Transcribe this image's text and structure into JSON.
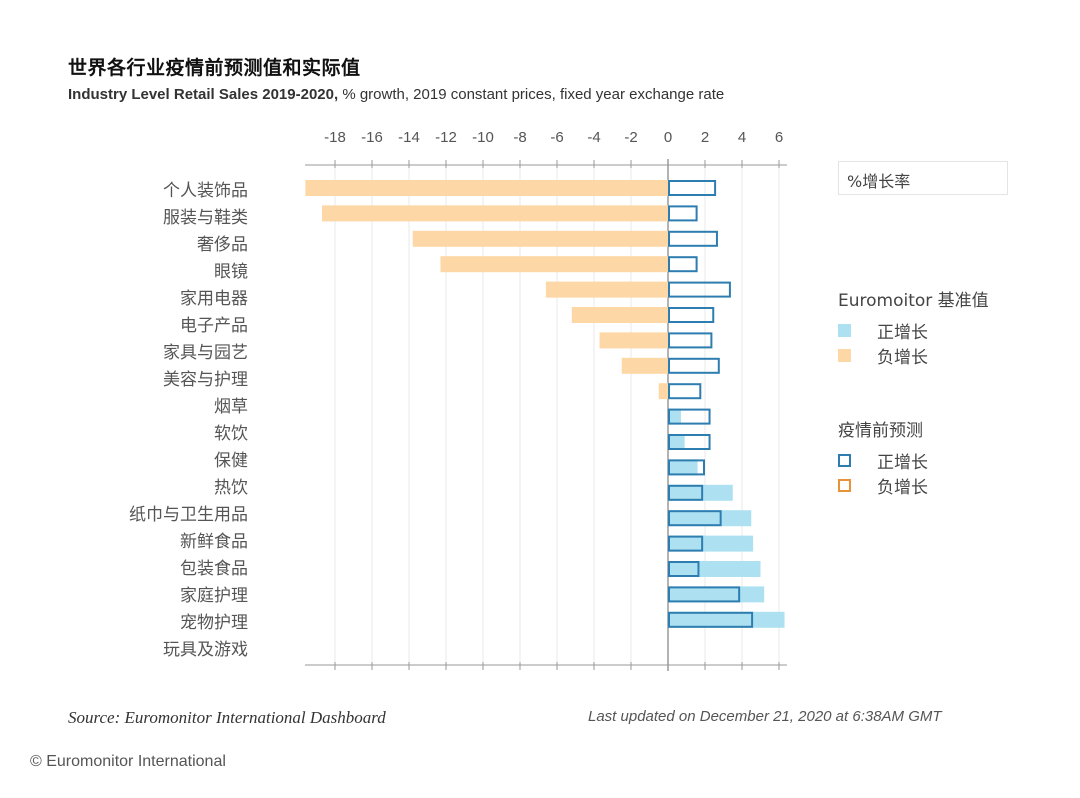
{
  "header": {
    "title": "世界各行业疫情前预测值和实际值",
    "subtitle_bold": "Industry Level Retail Sales 2019-2020,",
    "subtitle_rest": " % growth, 2019 constant prices, fixed year exchange rate"
  },
  "legend": {
    "box_label": "%增长率",
    "group1_title": "Euromoitor 基准值",
    "group1_items": [
      {
        "label": "正增长",
        "color": "#ADE1F2",
        "style": "fill"
      },
      {
        "label": "负增长",
        "color": "#FDD7A5",
        "style": "fill"
      }
    ],
    "group2_title": "疫情前预测",
    "group2_items": [
      {
        "label": "正增长",
        "color": "#2E7DB0",
        "style": "outline"
      },
      {
        "label": "负增长",
        "color": "#E8923A",
        "style": "outline"
      }
    ]
  },
  "footer": {
    "source": "Source: Euromonitor International Dashboard",
    "updated": "Last updated on December 21, 2020 at 6:38AM GMT",
    "copyright": "© Euromonitor International"
  },
  "colors": {
    "positive_fill": "#ADE1F2",
    "negative_fill": "#FDD7A5",
    "forecast_outline": "#2E7DB0",
    "gridline": "#E8E8E8",
    "axis": "#9A9A9A"
  },
  "chart_data": {
    "type": "bar",
    "orientation": "horizontal",
    "title": "世界各行业疫情前预测值和实际值",
    "subtitle": "Industry Level Retail Sales 2019-2020, % growth, 2019 constant prices, fixed year exchange rate",
    "xlabel": "",
    "ylabel": "",
    "xlim": [
      -19.5,
      6.5
    ],
    "xticks": [
      -18,
      -16,
      -14,
      -12,
      -10,
      -8,
      -6,
      -4,
      -2,
      0,
      2,
      4,
      6
    ],
    "grid": true,
    "legend_position": "right",
    "categories": [
      "个人装饰品",
      "服装与鞋类",
      "奢侈品",
      "眼镜",
      "家用电器",
      "电子产品",
      "家具与园艺",
      "美容与护理",
      "烟草",
      "软饮",
      "保健",
      "热饮",
      "纸巾与卫生用品",
      "新鲜食品",
      "包装食品",
      "家庭护理",
      "宠物护理",
      "玩具及游戏"
    ],
    "series": [
      {
        "name": "Euromoitor 基准值",
        "style": "filled",
        "values": [
          -19.6,
          -18.7,
          -13.8,
          -12.3,
          -6.6,
          -5.2,
          -3.7,
          -2.5,
          -0.5,
          0.7,
          0.9,
          1.6,
          3.5,
          4.5,
          4.6,
          5.0,
          5.2,
          6.3
        ]
      },
      {
        "name": "疫情前预测",
        "style": "outline",
        "values": [
          2.6,
          1.6,
          2.7,
          1.6,
          3.4,
          2.5,
          2.4,
          2.8,
          1.8,
          2.3,
          2.3,
          2.0,
          1.9,
          2.9,
          1.9,
          1.7,
          3.9,
          4.6
        ]
      }
    ]
  }
}
